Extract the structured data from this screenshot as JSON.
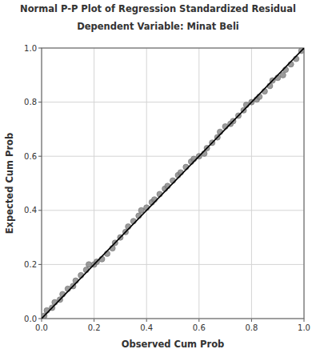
{
  "chart_data": {
    "type": "scatter",
    "title": "Normal P-P Plot of Regression Standardized Residual",
    "subtitle": "Dependent Variable: Minat Beli",
    "x_label": "Observed Cum Prob",
    "y_label": "Expected Cum Prob",
    "x": [
      0.01,
      0.02,
      0.04,
      0.05,
      0.07,
      0.08,
      0.1,
      0.12,
      0.13,
      0.15,
      0.17,
      0.18,
      0.2,
      0.21,
      0.23,
      0.25,
      0.27,
      0.28,
      0.3,
      0.32,
      0.33,
      0.35,
      0.37,
      0.38,
      0.4,
      0.42,
      0.43,
      0.45,
      0.47,
      0.48,
      0.5,
      0.52,
      0.53,
      0.55,
      0.57,
      0.58,
      0.6,
      0.62,
      0.63,
      0.65,
      0.67,
      0.68,
      0.7,
      0.72,
      0.73,
      0.75,
      0.77,
      0.78,
      0.8,
      0.82,
      0.83,
      0.85,
      0.87,
      0.88,
      0.9,
      0.92,
      0.93,
      0.95,
      0.97,
      0.99
    ],
    "values": [
      0.01,
      0.03,
      0.04,
      0.06,
      0.07,
      0.09,
      0.11,
      0.12,
      0.14,
      0.16,
      0.18,
      0.2,
      0.2,
      0.21,
      0.22,
      0.24,
      0.26,
      0.28,
      0.3,
      0.32,
      0.34,
      0.36,
      0.38,
      0.4,
      0.41,
      0.43,
      0.44,
      0.46,
      0.48,
      0.49,
      0.51,
      0.53,
      0.54,
      0.56,
      0.58,
      0.59,
      0.6,
      0.61,
      0.63,
      0.65,
      0.67,
      0.69,
      0.71,
      0.72,
      0.73,
      0.75,
      0.77,
      0.79,
      0.8,
      0.81,
      0.82,
      0.84,
      0.86,
      0.88,
      0.89,
      0.9,
      0.92,
      0.94,
      0.96,
      0.99
    ],
    "color": "#8a8a8a",
    "marker": "circle",
    "reference_line": {
      "x": [
        0,
        1
      ],
      "values": [
        0,
        1
      ],
      "color": "#000000"
    },
    "xlim": [
      0,
      1
    ],
    "ylim": [
      0,
      1
    ],
    "xticks": [
      {
        "value": 0,
        "label": "0.0"
      },
      0.2,
      0.4,
      0.6,
      0.8,
      {
        "value": 1,
        "label": "1.0"
      }
    ],
    "yticks": [
      {
        "value": 0,
        "label": "0.0"
      },
      0.2,
      0.4,
      0.6,
      0.8,
      {
        "value": 1,
        "label": "1.0"
      }
    ],
    "grid": true
  }
}
